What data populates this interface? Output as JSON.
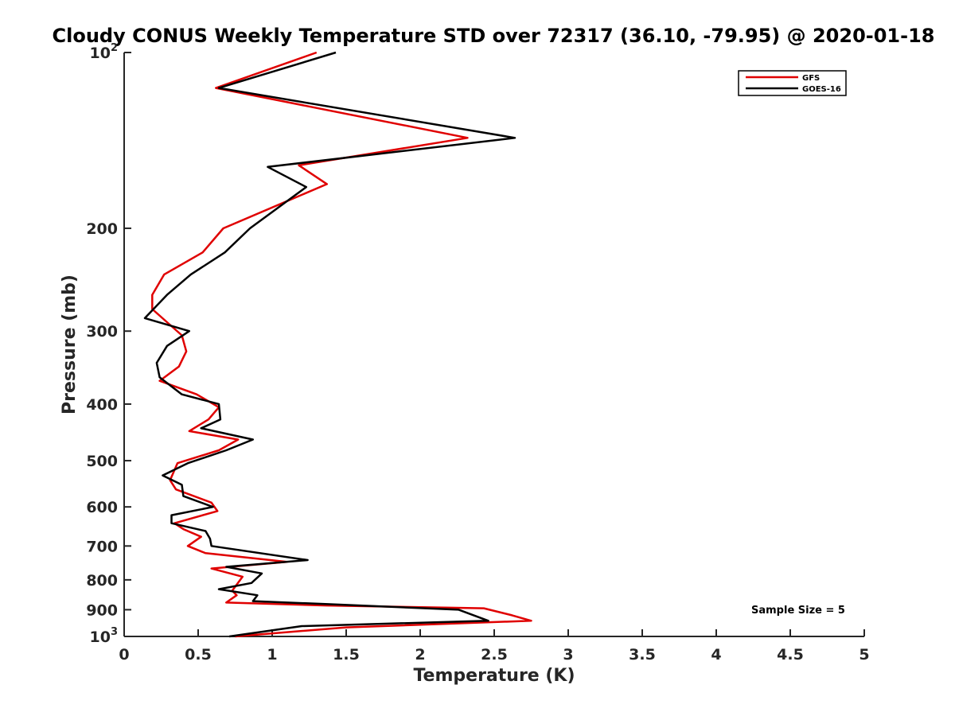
{
  "chart_data": {
    "type": "line",
    "title": "Cloudy CONUS Weekly Temperature STD over 72317 (36.10, -79.95) @ 2020-01-18",
    "xlabel": "Temperature (K)",
    "ylabel": "Pressure (mb)",
    "xlim": [
      0,
      5
    ],
    "ylim": [
      100,
      1000
    ],
    "y_scale": "log",
    "y_reversed": true,
    "x_ticks": [
      0,
      0.5,
      1,
      1.5,
      2,
      2.5,
      3,
      3.5,
      4,
      4.5,
      5
    ],
    "x_tick_labels": [
      "0",
      "0.5",
      "1",
      "1.5",
      "2",
      "2.5",
      "3",
      "3.5",
      "4",
      "4.5",
      "5"
    ],
    "y_ticks": [
      100,
      200,
      300,
      400,
      500,
      600,
      700,
      800,
      900,
      1000
    ],
    "y_tick_labels": [
      {
        "base": "10",
        "sup": "2"
      },
      {
        "base": "200",
        "sup": ""
      },
      {
        "base": "300",
        "sup": ""
      },
      {
        "base": "400",
        "sup": ""
      },
      {
        "base": "500",
        "sup": ""
      },
      {
        "base": "600",
        "sup": ""
      },
      {
        "base": "700",
        "sup": ""
      },
      {
        "base": "800",
        "sup": ""
      },
      {
        "base": "900",
        "sup": ""
      },
      {
        "base": "10",
        "sup": "3"
      }
    ],
    "grid": false,
    "legend_position": "top-right",
    "series": [
      {
        "name": "GFS",
        "color": "#e00000",
        "x": [
          1.3,
          0.62,
          2.32,
          1.18,
          1.37,
          0.67,
          0.53,
          0.27,
          0.19,
          0.19,
          0.39,
          0.42,
          0.37,
          0.24,
          0.49,
          0.64,
          0.57,
          0.44,
          0.77,
          0.64,
          0.36,
          0.31,
          0.35,
          0.59,
          0.63,
          0.34,
          0.4,
          0.52,
          0.43,
          0.55,
          1.1,
          0.59,
          0.8,
          0.73,
          0.76,
          0.69,
          1.37,
          2.43,
          2.62,
          2.75,
          1.5,
          0.75
        ],
        "y": [
          100,
          115,
          140,
          156,
          168,
          200,
          220,
          240,
          260,
          275,
          305,
          325,
          345,
          365,
          385,
          405,
          425,
          445,
          460,
          480,
          505,
          540,
          560,
          590,
          610,
          640,
          655,
          675,
          700,
          720,
          745,
          765,
          790,
          835,
          850,
          875,
          885,
          895,
          920,
          940,
          965,
          1000
        ]
      },
      {
        "name": "GOES-16",
        "color": "#000000",
        "x": [
          1.43,
          0.64,
          2.64,
          0.97,
          1.23,
          0.85,
          0.68,
          0.45,
          0.29,
          0.14,
          0.44,
          0.29,
          0.22,
          0.24,
          0.39,
          0.64,
          0.65,
          0.52,
          0.87,
          0.69,
          0.43,
          0.26,
          0.39,
          0.4,
          0.6,
          0.32,
          0.32,
          0.55,
          0.58,
          0.59,
          1.24,
          0.69,
          0.93,
          0.86,
          0.64,
          0.9,
          0.87,
          1.36,
          2.26,
          2.46,
          1.2,
          0.71
        ],
        "y": [
          100,
          115,
          140,
          157,
          170,
          200,
          220,
          240,
          260,
          285,
          300,
          318,
          340,
          360,
          385,
          400,
          425,
          440,
          460,
          480,
          505,
          530,
          550,
          575,
          600,
          620,
          640,
          660,
          680,
          700,
          740,
          760,
          780,
          810,
          830,
          850,
          870,
          880,
          900,
          940,
          960,
          1000
        ]
      }
    ],
    "annotations": [
      {
        "text": "Sample Size = 5",
        "position": "bottom-right"
      }
    ]
  }
}
